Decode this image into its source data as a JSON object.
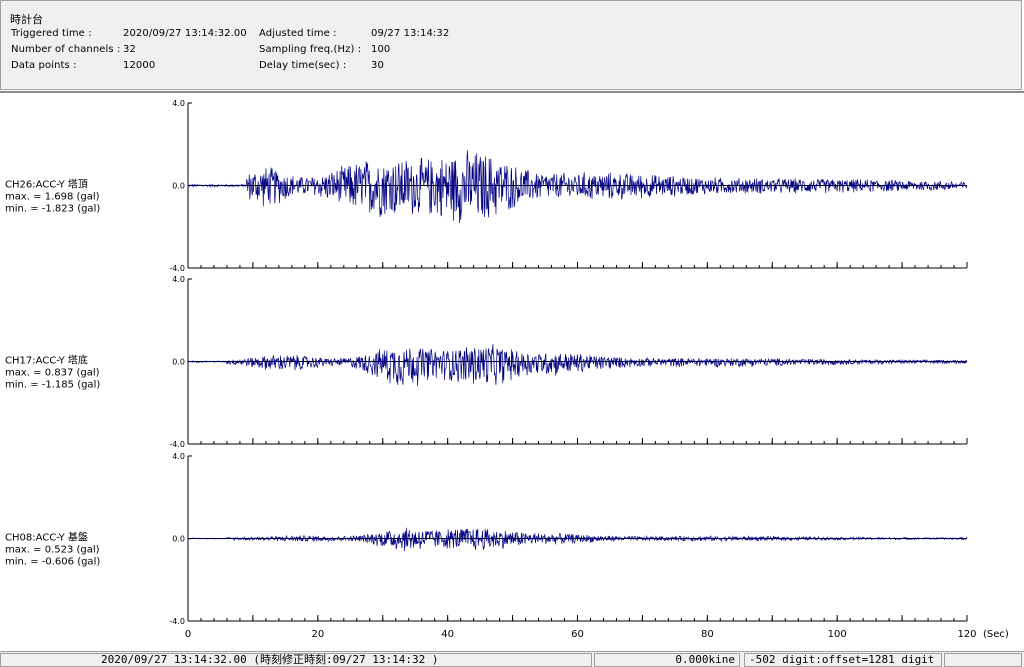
{
  "header": {
    "title": "時計台",
    "triggered_label": "Triggered time :",
    "triggered_value": "2020/09/27 13:14:32.00",
    "channels_label": "Number of channels :",
    "channels_value": "32",
    "datapoints_label": "Data points :",
    "datapoints_value": "12000",
    "adjusted_label": "Adjusted time :",
    "adjusted_value": "09/27 13:14:32",
    "sampling_label": "Sampling freq.(Hz) :",
    "sampling_value": "100",
    "delay_label": "Delay time(sec) :",
    "delay_value": "30"
  },
  "chart_data": {
    "type": "line",
    "x_axis": {
      "range": [
        0,
        120
      ],
      "ticks": [
        "0",
        "20",
        "40",
        "60",
        "80",
        "100",
        "120"
      ],
      "unit": "(Sec)"
    },
    "y_ticks": [
      "4.0",
      "0.0",
      "-4.0"
    ],
    "ylim": [
      -4.0,
      4.0
    ],
    "trace_color": "#000080",
    "series": [
      {
        "label": "CH26:ACC-Y 塔頂",
        "max_text": "max. =  1.698 (gal)",
        "min_text": "min. =  -1.823 (gal)",
        "max": 1.698,
        "min": -1.823
      },
      {
        "label": "CH17:ACC-Y 塔底",
        "max_text": "max. =  0.837 (gal)",
        "min_text": "min. =  -1.185 (gal)",
        "max": 0.837,
        "min": -1.185
      },
      {
        "label": "CH08:ACC-Y 基盤",
        "max_text": "max. =  0.523 (gal)",
        "min_text": "min. =  -0.606 (gal)",
        "max": 0.523,
        "min": -0.606
      }
    ]
  },
  "status": {
    "time": "2020/09/27 13:14:32.00  (時刻修正時刻:09/27 13:14:32  )",
    "velocity": "0.000kine",
    "digit": "-502 digit:offset=1281 digit"
  }
}
